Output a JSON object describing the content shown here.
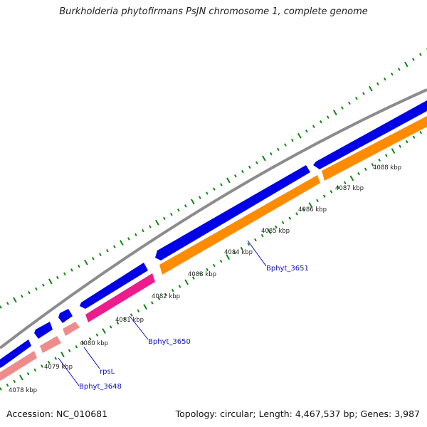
{
  "header": {
    "title": "Burkholderia phytofirmans PsJN chromosome 1, complete genome"
  },
  "footer": {
    "accession": "Accession: NC_010681",
    "stats": "Topology: circular; Length: 4,467,537 bp; Genes: 3,987"
  },
  "ticks": [
    {
      "label": "4078 kbp"
    },
    {
      "label": "4079 kbp"
    },
    {
      "label": "4080 kbp"
    },
    {
      "label": "4081 kbp"
    },
    {
      "label": "4082 kbp"
    },
    {
      "label": "4083 kbp"
    },
    {
      "label": "4084 kbp"
    },
    {
      "label": "4085 kbp"
    },
    {
      "label": "4086 kbp"
    },
    {
      "label": "4087 kbp"
    },
    {
      "label": "4088 kbp"
    }
  ],
  "gene_labels": [
    {
      "label": "Bphyt_3648"
    },
    {
      "label": "rpsL"
    },
    {
      "label": "Bphyt_3650"
    },
    {
      "label": "Bphyt_3651"
    }
  ],
  "colors": {
    "backbone": "#8c8c8c",
    "cds_forward": "#0000e6",
    "pink_gene": "#ec1c8c",
    "salmon_gene": "#ee8c8c",
    "orange_gene": "#ff8c00",
    "gc_skew": "#138713",
    "label_blue": "#1010c8"
  }
}
